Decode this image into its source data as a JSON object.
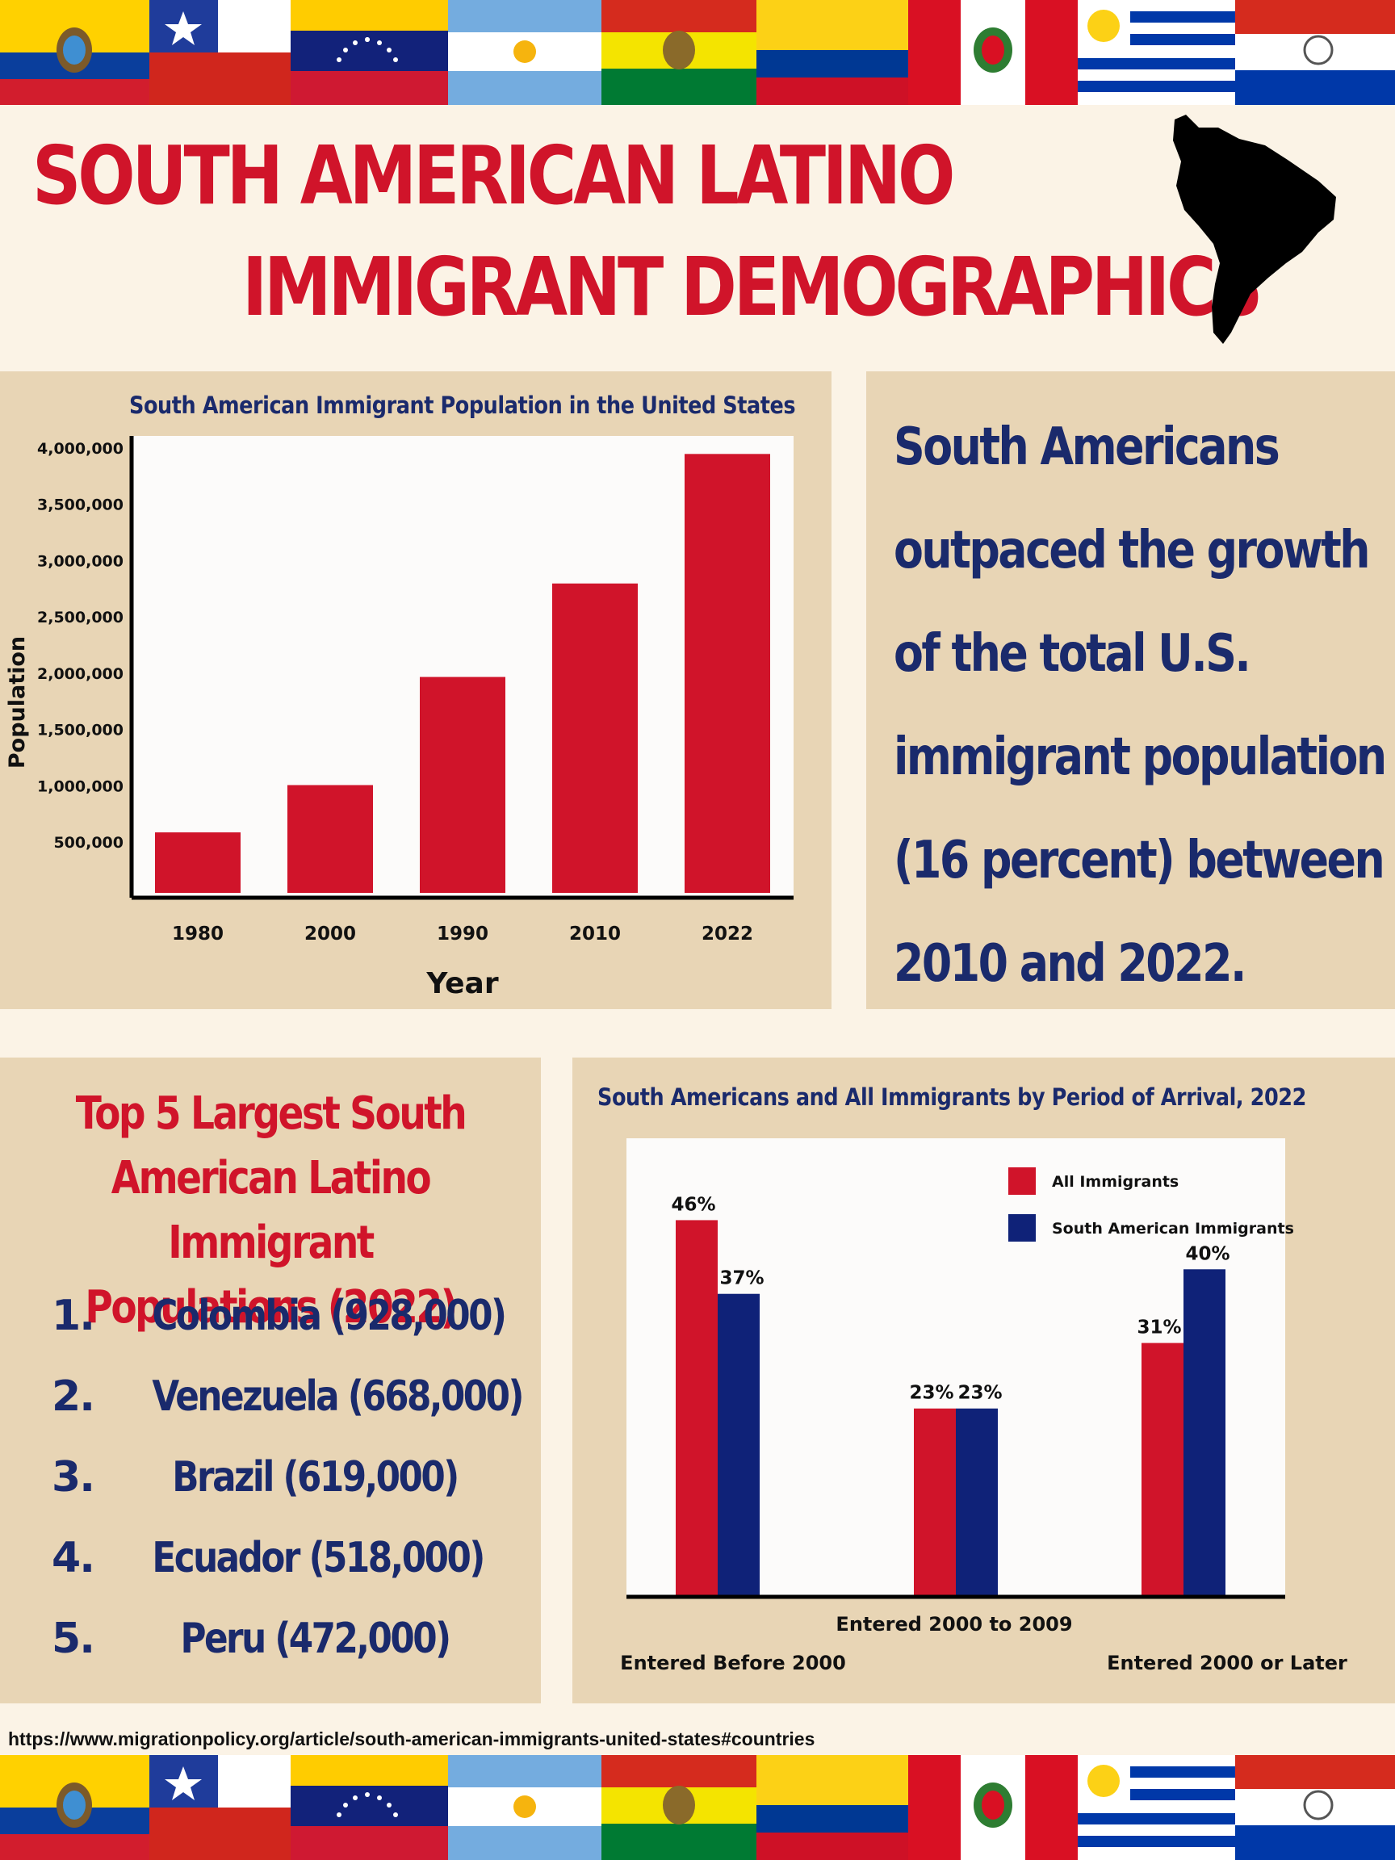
{
  "colors": {
    "red": "#d0142a",
    "navy": "#1a2a6c",
    "panel": "#e8d5b5",
    "background": "#fbf3e6"
  },
  "title": {
    "line1": "SOUTH AMERICAN LATINO",
    "line2": "IMMIGRANT DEMOGRAPHICS"
  },
  "flags": [
    "ecuador",
    "chile",
    "venezuela",
    "argentina",
    "bolivia",
    "colombia",
    "peru",
    "uruguay",
    "paraguay"
  ],
  "map_icon": "south-america-map-icon",
  "callout": {
    "lines": [
      "South Americans",
      "outpaced the growth",
      "of the total U.S.",
      "immigrant population",
      "(16 percent) between",
      "2010 and 2022."
    ]
  },
  "top5": {
    "heading_lines": [
      "Top 5 Largest South",
      "American Latino Immigrant",
      "Populations (2022)"
    ],
    "items": [
      {
        "rank": "1.",
        "label": "Colombia (928,000)"
      },
      {
        "rank": "2.",
        "label": "Venezuela (668,000)"
      },
      {
        "rank": "3.",
        "label": "Brazil (619,000)"
      },
      {
        "rank": "4.",
        "label": "Ecuador (518,000)"
      },
      {
        "rank": "5.",
        "label": "Peru (472,000)"
      }
    ]
  },
  "source": "https://www.migrationpolicy.org/article/south-american-immigrants-united-states#countries",
  "chart_data": [
    {
      "type": "bar",
      "title": "South American Immigrant Population in the United States",
      "xlabel": "Year",
      "ylabel": "Population",
      "categories": [
        "1980",
        "2000",
        "1990",
        "2010",
        "2022"
      ],
      "values": [
        580000,
        1000000,
        1960000,
        2790000,
        3940000
      ],
      "yticks": [
        "500,000",
        "1,000,000",
        "1,500,000",
        "2,000,000",
        "2,500,000",
        "3,000,000",
        "3,500,000",
        "4,000,000"
      ],
      "ytick_values": [
        500000,
        1000000,
        1500000,
        2000000,
        2500000,
        3000000,
        3500000,
        4000000
      ],
      "ylim": [
        0,
        4100000
      ],
      "color": "#d0142a",
      "grid": false
    },
    {
      "type": "bar",
      "title": "South Americans and All Immigrants by Period of Arrival, 2022",
      "categories": [
        "Entered Before 2000",
        "Entered  2000 to 2009",
        "Entered  2000 or Later"
      ],
      "series": [
        {
          "name": "All Immigrants",
          "values": [
            46,
            23,
            31
          ],
          "labels": [
            "46%",
            "23%",
            "31%"
          ],
          "color": "#d0142a"
        },
        {
          "name": "South American Immigrants",
          "values": [
            37,
            23,
            40
          ],
          "labels": [
            "37%",
            "23%",
            "40%"
          ],
          "color": "#0f2278"
        }
      ],
      "ylim": [
        0,
        56
      ],
      "legend": "top-right",
      "grid": false
    }
  ]
}
